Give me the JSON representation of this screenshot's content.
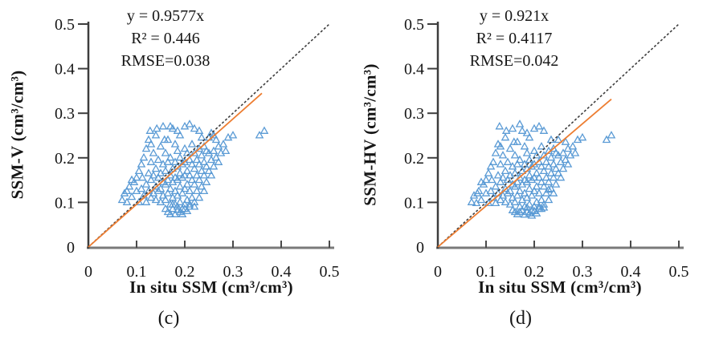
{
  "figure": {
    "panels": [
      {
        "id": "c",
        "label": "(c)",
        "annotation": {
          "equation": "y = 0.9577x",
          "r2": "R² = 0.446",
          "rmse": "RMSE=0.038"
        },
        "y_axis_title": "SSM-V (cm³/cm³)",
        "x_axis_title": "In situ SSM (cm³/cm³)"
      },
      {
        "id": "d",
        "label": "(d)",
        "annotation": {
          "equation": "y = 0.921x",
          "r2": "R² = 0.4117",
          "rmse": "RMSE=0.042"
        },
        "y_axis_title": "SSM-HV (cm³/cm³)",
        "x_axis_title": "In situ SSM (cm³/cm³)"
      }
    ]
  },
  "chart_data": [
    {
      "type": "scatter",
      "panel": "(c)",
      "xlabel": "In situ SSM (cm³/cm³)",
      "ylabel": "SSM-V (cm³/cm³)",
      "xlim": [
        0,
        0.5
      ],
      "ylim": [
        0,
        0.5
      ],
      "x_ticks": [
        0,
        0.1,
        0.2,
        0.3,
        0.4,
        0.5
      ],
      "y_ticks": [
        0,
        0.1,
        0.2,
        0.3,
        0.4,
        0.5
      ],
      "grid": false,
      "marker": "open-triangle",
      "marker_color": "#5B9BD5",
      "identity_line": {
        "from": [
          0,
          0
        ],
        "to": [
          0.5,
          0.5
        ],
        "color": "#3d3d3d",
        "style": "dotted"
      },
      "regression_line": {
        "equation": "y = 0.9577x",
        "slope": 0.9577,
        "x_range": [
          0,
          0.36
        ],
        "color": "#ED7D31"
      },
      "r_squared": 0.446,
      "rmse": 0.038,
      "points": [
        [
          0.07,
          0.105
        ],
        [
          0.075,
          0.12
        ],
        [
          0.08,
          0.1
        ],
        [
          0.08,
          0.125
        ],
        [
          0.085,
          0.135
        ],
        [
          0.09,
          0.112
        ],
        [
          0.09,
          0.15
        ],
        [
          0.095,
          0.145
        ],
        [
          0.1,
          0.125
        ],
        [
          0.1,
          0.155
        ],
        [
          0.105,
          0.1
        ],
        [
          0.105,
          0.17
        ],
        [
          0.11,
          0.13
        ],
        [
          0.11,
          0.185
        ],
        [
          0.112,
          0.155
        ],
        [
          0.115,
          0.115
        ],
        [
          0.115,
          0.2
        ],
        [
          0.12,
          0.1
        ],
        [
          0.12,
          0.14
        ],
        [
          0.12,
          0.22
        ],
        [
          0.125,
          0.125
        ],
        [
          0.125,
          0.165
        ],
        [
          0.125,
          0.24
        ],
        [
          0.128,
          0.26
        ],
        [
          0.13,
          0.11
        ],
        [
          0.13,
          0.15
        ],
        [
          0.13,
          0.19
        ],
        [
          0.13,
          0.23
        ],
        [
          0.135,
          0.12
        ],
        [
          0.135,
          0.16
        ],
        [
          0.135,
          0.21
        ],
        [
          0.14,
          0.105
        ],
        [
          0.14,
          0.135
        ],
        [
          0.14,
          0.175
        ],
        [
          0.14,
          0.25
        ],
        [
          0.142,
          0.265
        ],
        [
          0.145,
          0.125
        ],
        [
          0.145,
          0.155
        ],
        [
          0.145,
          0.195
        ],
        [
          0.15,
          0.1
        ],
        [
          0.15,
          0.13
        ],
        [
          0.15,
          0.165
        ],
        [
          0.15,
          0.225
        ],
        [
          0.155,
          0.115
        ],
        [
          0.155,
          0.145
        ],
        [
          0.155,
          0.185
        ],
        [
          0.155,
          0.27
        ],
        [
          0.158,
          0.24
        ],
        [
          0.16,
          0.105
        ],
        [
          0.16,
          0.14
        ],
        [
          0.16,
          0.17
        ],
        [
          0.16,
          0.21
        ],
        [
          0.165,
          0.12
        ],
        [
          0.165,
          0.15
        ],
        [
          0.165,
          0.19
        ],
        [
          0.165,
          0.24
        ],
        [
          0.17,
          0.095
        ],
        [
          0.17,
          0.13
        ],
        [
          0.17,
          0.16
        ],
        [
          0.17,
          0.2
        ],
        [
          0.17,
          0.27
        ],
        [
          0.175,
          0.11
        ],
        [
          0.175,
          0.145
        ],
        [
          0.175,
          0.175
        ],
        [
          0.175,
          0.265
        ],
        [
          0.18,
          0.095
        ],
        [
          0.18,
          0.125
        ],
        [
          0.18,
          0.155
        ],
        [
          0.18,
          0.19
        ],
        [
          0.18,
          0.23
        ],
        [
          0.185,
          0.082
        ],
        [
          0.185,
          0.115
        ],
        [
          0.185,
          0.15
        ],
        [
          0.185,
          0.18
        ],
        [
          0.185,
          0.215
        ],
        [
          0.185,
          0.26
        ],
        [
          0.19,
          0.1
        ],
        [
          0.19,
          0.135
        ],
        [
          0.19,
          0.165
        ],
        [
          0.19,
          0.2
        ],
        [
          0.19,
          0.25
        ],
        [
          0.195,
          0.085
        ],
        [
          0.195,
          0.12
        ],
        [
          0.195,
          0.155
        ],
        [
          0.195,
          0.185
        ],
        [
          0.2,
          0.095
        ],
        [
          0.2,
          0.13
        ],
        [
          0.2,
          0.16
        ],
        [
          0.2,
          0.19
        ],
        [
          0.2,
          0.22
        ],
        [
          0.2,
          0.27
        ],
        [
          0.205,
          0.105
        ],
        [
          0.205,
          0.14
        ],
        [
          0.205,
          0.17
        ],
        [
          0.205,
          0.21
        ],
        [
          0.21,
          0.09
        ],
        [
          0.21,
          0.125
        ],
        [
          0.21,
          0.16
        ],
        [
          0.21,
          0.195
        ],
        [
          0.21,
          0.275
        ],
        [
          0.215,
          0.11
        ],
        [
          0.215,
          0.15
        ],
        [
          0.215,
          0.185
        ],
        [
          0.215,
          0.23
        ],
        [
          0.22,
          0.1
        ],
        [
          0.22,
          0.14
        ],
        [
          0.22,
          0.175
        ],
        [
          0.22,
          0.21
        ],
        [
          0.22,
          0.265
        ],
        [
          0.225,
          0.125
        ],
        [
          0.225,
          0.16
        ],
        [
          0.225,
          0.195
        ],
        [
          0.23,
          0.11
        ],
        [
          0.23,
          0.15
        ],
        [
          0.23,
          0.185
        ],
        [
          0.23,
          0.22
        ],
        [
          0.23,
          0.26
        ],
        [
          0.235,
          0.135
        ],
        [
          0.235,
          0.17
        ],
        [
          0.235,
          0.205
        ],
        [
          0.235,
          0.245
        ],
        [
          0.24,
          0.125
        ],
        [
          0.24,
          0.16
        ],
        [
          0.24,
          0.19
        ],
        [
          0.24,
          0.225
        ],
        [
          0.245,
          0.145
        ],
        [
          0.245,
          0.18
        ],
        [
          0.245,
          0.215
        ],
        [
          0.25,
          0.17
        ],
        [
          0.25,
          0.21
        ],
        [
          0.25,
          0.245
        ],
        [
          0.255,
          0.16
        ],
        [
          0.255,
          0.195
        ],
        [
          0.255,
          0.255
        ],
        [
          0.26,
          0.18
        ],
        [
          0.26,
          0.215
        ],
        [
          0.26,
          0.25
        ],
        [
          0.265,
          0.2
        ],
        [
          0.265,
          0.24
        ],
        [
          0.27,
          0.19
        ],
        [
          0.27,
          0.225
        ],
        [
          0.275,
          0.21
        ],
        [
          0.28,
          0.23
        ],
        [
          0.285,
          0.215
        ],
        [
          0.29,
          0.245
        ],
        [
          0.3,
          0.25
        ],
        [
          0.355,
          0.25
        ],
        [
          0.365,
          0.26
        ],
        [
          0.16,
          0.085
        ],
        [
          0.165,
          0.078
        ],
        [
          0.17,
          0.073
        ],
        [
          0.175,
          0.085
        ],
        [
          0.175,
          0.095
        ],
        [
          0.18,
          0.073
        ],
        [
          0.185,
          0.09
        ],
        [
          0.19,
          0.078
        ],
        [
          0.195,
          0.073
        ],
        [
          0.2,
          0.085
        ],
        [
          0.205,
          0.08
        ],
        [
          0.21,
          0.095
        ],
        [
          0.22,
          0.09
        ]
      ]
    },
    {
      "type": "scatter",
      "panel": "(d)",
      "xlabel": "In situ SSM (cm³/cm³)",
      "ylabel": "SSM-HV (cm³/cm³)",
      "xlim": [
        0,
        0.5
      ],
      "ylim": [
        0,
        0.5
      ],
      "x_ticks": [
        0,
        0.1,
        0.2,
        0.3,
        0.4,
        0.5
      ],
      "y_ticks": [
        0,
        0.1,
        0.2,
        0.3,
        0.4,
        0.5
      ],
      "grid": false,
      "marker": "open-triangle",
      "marker_color": "#5B9BD5",
      "identity_line": {
        "from": [
          0,
          0
        ],
        "to": [
          0.5,
          0.5
        ],
        "color": "#3d3d3d",
        "style": "dotted"
      },
      "regression_line": {
        "equation": "y = 0.921x",
        "slope": 0.921,
        "x_range": [
          0,
          0.36
        ],
        "color": "#ED7D31"
      },
      "r_squared": 0.4117,
      "rmse": 0.042,
      "points": [
        [
          0.07,
          0.1
        ],
        [
          0.075,
          0.115
        ],
        [
          0.08,
          0.098
        ],
        [
          0.082,
          0.12
        ],
        [
          0.085,
          0.125
        ],
        [
          0.09,
          0.105
        ],
        [
          0.09,
          0.145
        ],
        [
          0.095,
          0.14
        ],
        [
          0.1,
          0.12
        ],
        [
          0.1,
          0.15
        ],
        [
          0.105,
          0.098
        ],
        [
          0.105,
          0.165
        ],
        [
          0.11,
          0.125
        ],
        [
          0.11,
          0.18
        ],
        [
          0.112,
          0.15
        ],
        [
          0.115,
          0.11
        ],
        [
          0.115,
          0.19
        ],
        [
          0.12,
          0.098
        ],
        [
          0.12,
          0.135
        ],
        [
          0.12,
          0.21
        ],
        [
          0.125,
          0.12
        ],
        [
          0.125,
          0.16
        ],
        [
          0.125,
          0.23
        ],
        [
          0.128,
          0.27
        ],
        [
          0.13,
          0.105
        ],
        [
          0.13,
          0.145
        ],
        [
          0.13,
          0.185
        ],
        [
          0.13,
          0.225
        ],
        [
          0.135,
          0.115
        ],
        [
          0.135,
          0.155
        ],
        [
          0.135,
          0.205
        ],
        [
          0.14,
          0.1
        ],
        [
          0.14,
          0.13
        ],
        [
          0.14,
          0.17
        ],
        [
          0.14,
          0.245
        ],
        [
          0.142,
          0.26
        ],
        [
          0.145,
          0.12
        ],
        [
          0.145,
          0.15
        ],
        [
          0.145,
          0.19
        ],
        [
          0.15,
          0.095
        ],
        [
          0.15,
          0.125
        ],
        [
          0.15,
          0.16
        ],
        [
          0.15,
          0.22
        ],
        [
          0.155,
          0.11
        ],
        [
          0.155,
          0.14
        ],
        [
          0.155,
          0.18
        ],
        [
          0.155,
          0.265
        ],
        [
          0.158,
          0.235
        ],
        [
          0.16,
          0.1
        ],
        [
          0.16,
          0.135
        ],
        [
          0.16,
          0.165
        ],
        [
          0.16,
          0.205
        ],
        [
          0.165,
          0.115
        ],
        [
          0.165,
          0.145
        ],
        [
          0.165,
          0.185
        ],
        [
          0.165,
          0.235
        ],
        [
          0.17,
          0.09
        ],
        [
          0.17,
          0.125
        ],
        [
          0.17,
          0.155
        ],
        [
          0.17,
          0.195
        ],
        [
          0.17,
          0.275
        ],
        [
          0.175,
          0.105
        ],
        [
          0.175,
          0.14
        ],
        [
          0.175,
          0.17
        ],
        [
          0.175,
          0.26
        ],
        [
          0.18,
          0.09
        ],
        [
          0.18,
          0.12
        ],
        [
          0.18,
          0.15
        ],
        [
          0.18,
          0.185
        ],
        [
          0.18,
          0.225
        ],
        [
          0.185,
          0.078
        ],
        [
          0.185,
          0.11
        ],
        [
          0.185,
          0.145
        ],
        [
          0.185,
          0.175
        ],
        [
          0.185,
          0.21
        ],
        [
          0.185,
          0.255
        ],
        [
          0.19,
          0.095
        ],
        [
          0.19,
          0.13
        ],
        [
          0.19,
          0.16
        ],
        [
          0.19,
          0.195
        ],
        [
          0.19,
          0.245
        ],
        [
          0.195,
          0.082
        ],
        [
          0.195,
          0.115
        ],
        [
          0.195,
          0.15
        ],
        [
          0.195,
          0.18
        ],
        [
          0.2,
          0.09
        ],
        [
          0.2,
          0.125
        ],
        [
          0.2,
          0.155
        ],
        [
          0.2,
          0.185
        ],
        [
          0.2,
          0.215
        ],
        [
          0.2,
          0.265
        ],
        [
          0.205,
          0.1
        ],
        [
          0.205,
          0.135
        ],
        [
          0.205,
          0.165
        ],
        [
          0.205,
          0.205
        ],
        [
          0.21,
          0.085
        ],
        [
          0.21,
          0.12
        ],
        [
          0.21,
          0.155
        ],
        [
          0.21,
          0.19
        ],
        [
          0.21,
          0.27
        ],
        [
          0.215,
          0.105
        ],
        [
          0.215,
          0.145
        ],
        [
          0.215,
          0.18
        ],
        [
          0.215,
          0.225
        ],
        [
          0.22,
          0.095
        ],
        [
          0.22,
          0.135
        ],
        [
          0.22,
          0.17
        ],
        [
          0.22,
          0.205
        ],
        [
          0.22,
          0.26
        ],
        [
          0.225,
          0.12
        ],
        [
          0.225,
          0.155
        ],
        [
          0.225,
          0.19
        ],
        [
          0.23,
          0.105
        ],
        [
          0.23,
          0.128
        ],
        [
          0.23,
          0.145
        ],
        [
          0.23,
          0.18
        ],
        [
          0.23,
          0.215
        ],
        [
          0.235,
          0.13
        ],
        [
          0.235,
          0.165
        ],
        [
          0.235,
          0.2
        ],
        [
          0.235,
          0.24
        ],
        [
          0.24,
          0.12
        ],
        [
          0.24,
          0.155
        ],
        [
          0.24,
          0.185
        ],
        [
          0.24,
          0.22
        ],
        [
          0.245,
          0.14
        ],
        [
          0.245,
          0.175
        ],
        [
          0.245,
          0.21
        ],
        [
          0.25,
          0.165
        ],
        [
          0.25,
          0.205
        ],
        [
          0.25,
          0.24
        ],
        [
          0.255,
          0.155
        ],
        [
          0.255,
          0.19
        ],
        [
          0.26,
          0.175
        ],
        [
          0.26,
          0.21
        ],
        [
          0.265,
          0.195
        ],
        [
          0.265,
          0.235
        ],
        [
          0.27,
          0.185
        ],
        [
          0.27,
          0.22
        ],
        [
          0.275,
          0.205
        ],
        [
          0.28,
          0.225
        ],
        [
          0.285,
          0.21
        ],
        [
          0.29,
          0.24
        ],
        [
          0.3,
          0.245
        ],
        [
          0.35,
          0.24
        ],
        [
          0.36,
          0.25
        ],
        [
          0.155,
          0.082
        ],
        [
          0.16,
          0.078
        ],
        [
          0.165,
          0.073
        ],
        [
          0.17,
          0.078
        ],
        [
          0.175,
          0.082
        ],
        [
          0.18,
          0.072
        ],
        [
          0.185,
          0.088
        ],
        [
          0.19,
          0.075
        ],
        [
          0.195,
          0.07
        ],
        [
          0.2,
          0.08
        ],
        [
          0.205,
          0.075
        ],
        [
          0.21,
          0.09
        ],
        [
          0.215,
          0.085
        ],
        [
          0.22,
          0.088
        ]
      ]
    }
  ]
}
